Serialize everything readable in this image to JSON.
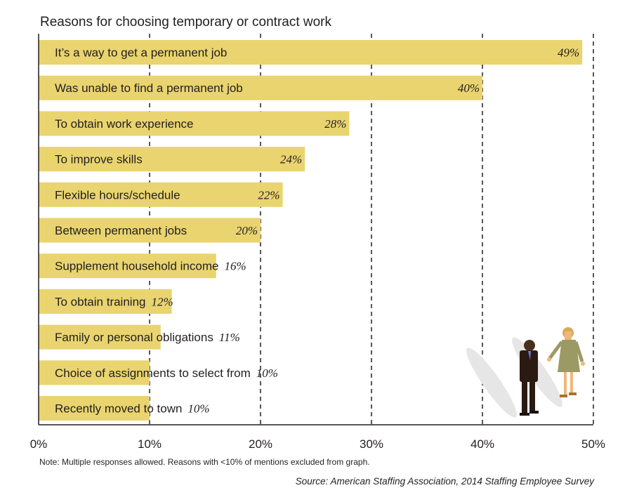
{
  "chart_data": {
    "type": "bar",
    "orientation": "horizontal",
    "title": "Reasons for choosing temporary or contract work",
    "categories": [
      "It’s a way to get a permanent job",
      "Was unable to find a permanent job",
      "To obtain work experience",
      "To improve skills",
      "Flexible hours/schedule",
      "Between permanent jobs",
      "Supplement household income",
      "To obtain training",
      "Family or personal obligations",
      "Choice of assignments to select from",
      "Recently moved to town"
    ],
    "values": [
      49,
      40,
      28,
      24,
      22,
      20,
      16,
      12,
      11,
      10,
      10
    ],
    "value_labels": [
      "49%",
      "40%",
      "28%",
      "24%",
      "22%",
      "20%",
      "16%",
      "12%",
      "11%",
      "10%",
      "10%"
    ],
    "xlim": [
      0,
      50
    ],
    "xticks": [
      "0%",
      "10%",
      "20%",
      "30%",
      "40%",
      "50%"
    ],
    "grid": "vertical dashed",
    "bar_color": "#e9d46f",
    "note": "Note: Multiple responses allowed. Reasons with <10% of mentions excluded from graph.",
    "source": "Source: American Staffing Association, 2014 Staffing Employee Survey"
  }
}
